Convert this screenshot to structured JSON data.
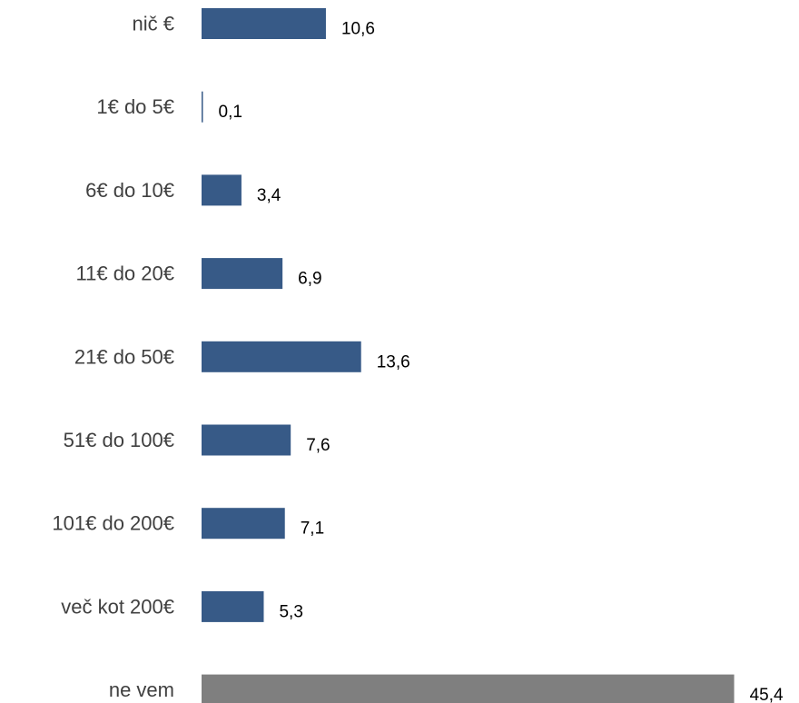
{
  "chart_data": {
    "type": "bar",
    "orientation": "horizontal",
    "categories": [
      "nič €",
      "1€ do 5€",
      "6€ do 10€",
      "11€ do 20€",
      "21€ do 50€",
      "51€ do 100€",
      "101€ do 200€",
      "več kot 200€",
      "ne vem"
    ],
    "values": [
      10.6,
      0.1,
      3.4,
      6.9,
      13.6,
      7.6,
      7.1,
      5.3,
      45.4
    ],
    "value_labels": [
      "10,6",
      "0,1",
      "3,4",
      "6,9",
      "13,6",
      "7,6",
      "7,1",
      "5,3",
      "45,4"
    ],
    "colors": [
      "#375a87",
      "#375a87",
      "#375a87",
      "#375a87",
      "#375a87",
      "#375a87",
      "#375a87",
      "#375a87",
      "#7f7f7f"
    ],
    "title": "",
    "xlabel": "",
    "ylabel": "",
    "xlim": [
      0,
      45.4
    ],
    "grid": false,
    "legend": "none"
  }
}
